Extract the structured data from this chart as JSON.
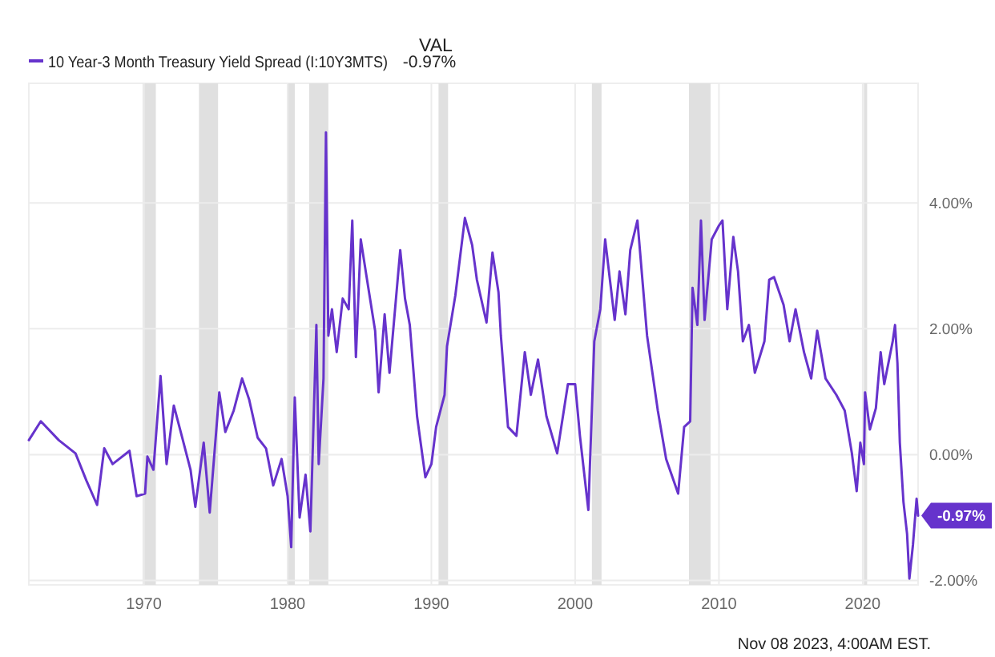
{
  "chart_data": {
    "type": "line",
    "legend_title": "VAL",
    "legend": "top left",
    "grid": true,
    "marker": "none",
    "line_style": "solid",
    "xlim": [
      "1962-01-01",
      "2023-11-08"
    ],
    "xticks": [
      {
        "value": "1970",
        "label": "1970"
      },
      {
        "value": "1980",
        "label": "1980"
      },
      {
        "value": "1990",
        "label": "1990"
      },
      {
        "value": "2000",
        "label": "2000"
      },
      {
        "value": "2010",
        "label": "2010"
      },
      {
        "value": "2020",
        "label": "2020"
      }
    ],
    "ylim": [
      -2.07,
      5.9
    ],
    "yticks": [
      {
        "value": -2,
        "label": "-2.00%"
      },
      {
        "value": 0,
        "label": "0.00%"
      },
      {
        "value": 2,
        "label": "2.00%"
      },
      {
        "value": 4,
        "label": "4.00%"
      }
    ],
    "bands": [
      {
        "axis": "x",
        "from": "1969-12",
        "to": "1970-11",
        "color": "#e0e0e0"
      },
      {
        "axis": "x",
        "from": "1973-11",
        "to": "1975-03",
        "color": "#e0e0e0"
      },
      {
        "axis": "x",
        "from": "1980-01",
        "to": "1980-07",
        "color": "#e0e0e0"
      },
      {
        "axis": "x",
        "from": "1981-07",
        "to": "1982-11",
        "color": "#e0e0e0"
      },
      {
        "axis": "x",
        "from": "1990-07",
        "to": "1991-03",
        "color": "#e0e0e0"
      },
      {
        "axis": "x",
        "from": "2001-03",
        "to": "2001-11",
        "color": "#e0e0e0"
      },
      {
        "axis": "x",
        "from": "2007-12",
        "to": "2009-06",
        "color": "#e0e0e0"
      },
      {
        "axis": "x",
        "from": "2020-02",
        "to": "2020-04",
        "color": "#e0e0e0"
      }
    ],
    "annotations": [
      "-0.97%",
      {
        "text": "-0.97%",
        "x": "2023-11-08",
        "y": -0.97
      },
      "Nov 08 2023, 4:00AM EST."
    ],
    "series": [
      {
        "name": "10 Year-3 Month Treasury Yield Spread (I:10Y3MTS)",
        "color": "#6633cc",
        "x": [
          "1962-01",
          "1962-11",
          "1964-02",
          "1965-04",
          "1966-01",
          "1966-10",
          "1967-04",
          "1967-11",
          "1969-01",
          "1969-07",
          "1970-02",
          "1970-04",
          "1970-09",
          "1971-03",
          "1971-08",
          "1972-02",
          "1972-09",
          "1973-04",
          "1973-08",
          "1974-03",
          "1974-08",
          "1975-04",
          "1975-09",
          "1976-04",
          "1976-11",
          "1977-05",
          "1977-12",
          "1978-07",
          "1979-01",
          "1979-08",
          "1980-01",
          "1980-04",
          "1980-07",
          "1980-11",
          "1981-04",
          "1981-08",
          "1982-01",
          "1982-03",
          "1982-07",
          "1982-09",
          "1982-11",
          "1983-02",
          "1983-06",
          "1983-11",
          "1984-04",
          "1984-07",
          "1984-10",
          "1985-02",
          "1985-07",
          "1986-02",
          "1986-05",
          "1986-10",
          "1987-02",
          "1987-11",
          "1988-03",
          "1988-07",
          "1989-01",
          "1989-08",
          "1990-01",
          "1990-05",
          "1990-12",
          "1991-02",
          "1991-09",
          "1992-05",
          "1992-11",
          "1993-03",
          "1993-11",
          "1994-04",
          "1994-09",
          "1994-11",
          "1995-05",
          "1995-12",
          "1996-07",
          "1996-12",
          "1997-06",
          "1998-01",
          "1998-10",
          "1999-07",
          "2000-01",
          "2000-05",
          "2000-12",
          "2001-05",
          "2001-10",
          "2002-02",
          "2002-10",
          "2003-02",
          "2003-07",
          "2003-11",
          "2004-05",
          "2005-01",
          "2005-10",
          "2006-05",
          "2007-03",
          "2007-08",
          "2008-01",
          "2008-03",
          "2008-07",
          "2008-10",
          "2009-01",
          "2009-07",
          "2010-01",
          "2010-04",
          "2010-08",
          "2011-01",
          "2011-05",
          "2011-09",
          "2012-02",
          "2012-07",
          "2013-03",
          "2013-07",
          "2013-11",
          "2014-07",
          "2014-12",
          "2015-05",
          "2015-12",
          "2016-06",
          "2016-11",
          "2017-06",
          "2018-03",
          "2018-10",
          "2019-04",
          "2019-08",
          "2019-11",
          "2020-02",
          "2020-03",
          "2020-07",
          "2020-12",
          "2021-04",
          "2021-07",
          "2022-02",
          "2022-04",
          "2022-06",
          "2022-08",
          "2022-11",
          "2023-02",
          "2023-04",
          "2023-07",
          "2023-10",
          "2023-11-08"
        ],
        "values": [
          0.23,
          0.53,
          0.23,
          0.02,
          -0.41,
          -0.8,
          0.1,
          -0.15,
          0.06,
          -0.66,
          -0.62,
          -0.03,
          -0.24,
          1.25,
          -0.15,
          0.78,
          0.27,
          -0.24,
          -0.83,
          0.19,
          -0.92,
          0.99,
          0.36,
          0.7,
          1.21,
          0.87,
          0.27,
          0.1,
          -0.49,
          -0.07,
          -0.66,
          -1.47,
          0.91,
          -1.0,
          -0.32,
          -1.22,
          2.06,
          -0.15,
          1.21,
          5.12,
          1.89,
          2.31,
          1.63,
          2.48,
          2.31,
          3.72,
          1.55,
          3.42,
          2.82,
          1.97,
          0.99,
          2.23,
          1.3,
          3.25,
          2.48,
          2.06,
          0.61,
          -0.36,
          -0.15,
          0.44,
          0.95,
          1.72,
          2.53,
          3.76,
          3.33,
          2.78,
          2.1,
          3.21,
          2.58,
          1.89,
          0.44,
          0.3,
          1.63,
          0.95,
          1.51,
          0.61,
          0.02,
          1.12,
          1.12,
          0.3,
          -0.88,
          1.8,
          2.31,
          3.42,
          2.14,
          2.91,
          2.23,
          3.25,
          3.72,
          1.89,
          0.7,
          -0.07,
          -0.62,
          0.44,
          0.53,
          2.65,
          2.06,
          3.72,
          2.14,
          3.42,
          3.64,
          3.72,
          2.31,
          3.46,
          2.91,
          1.8,
          2.06,
          1.3,
          1.8,
          2.78,
          2.82,
          2.38,
          1.8,
          2.31,
          1.63,
          1.21,
          1.97,
          1.21,
          0.95,
          0.7,
          0.02,
          -0.58,
          0.19,
          -0.15,
          0.99,
          0.4,
          0.74,
          1.63,
          1.12,
          1.8,
          2.06,
          1.46,
          0.19,
          -0.75,
          -1.26,
          -1.97,
          -1.43,
          -0.7,
          -0.97
        ]
      }
    ]
  }
}
